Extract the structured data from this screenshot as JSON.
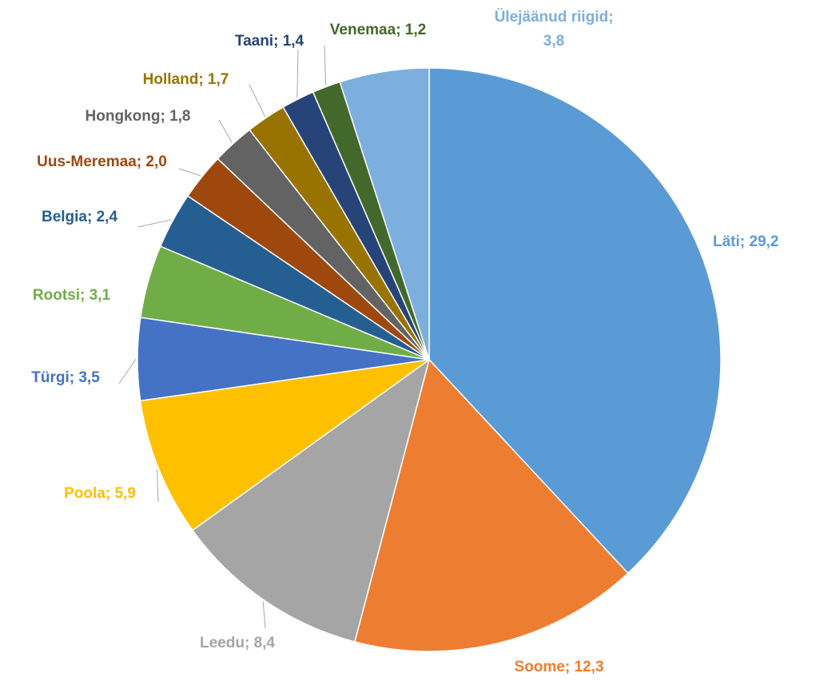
{
  "chart_data": {
    "type": "pie",
    "categories": [
      "Läti",
      "Soome",
      "Leedu",
      "Poola",
      "Türgi",
      "Rootsi",
      "Belgia",
      "Uus-Meremaa",
      "Hongkong",
      "Holland",
      "Taani",
      "Venemaa",
      "Ülejäänud riigid"
    ],
    "values": [
      29.2,
      12.3,
      8.4,
      5.9,
      3.5,
      3.1,
      2.4,
      2.0,
      1.8,
      1.7,
      1.4,
      1.2,
      3.8
    ],
    "value_labels": [
      "29,2",
      "12,3",
      "8,4",
      "5,9",
      "3,5",
      "3,1",
      "2,4",
      "2,0",
      "1,8",
      "1,7",
      "1,4",
      "1,2",
      "3,8"
    ],
    "colors": [
      "#5b9bd5",
      "#ed7d31",
      "#a5a5a5",
      "#ffc000",
      "#4472c4",
      "#70ad47",
      "#255e91",
      "#9e480e",
      "#636363",
      "#997300",
      "#264478",
      "#43682b",
      "#7cafdd"
    ],
    "label_separator": ";"
  }
}
